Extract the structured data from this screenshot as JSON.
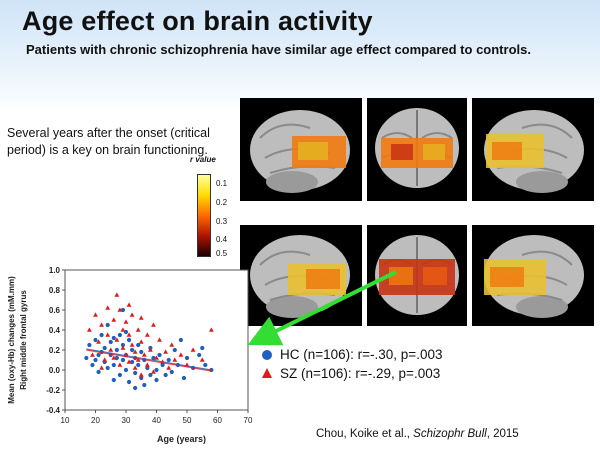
{
  "slide": {
    "title": "Age effect on brain activity",
    "subtitle": "Patients with chronic schizophrenia have similar age effect compared to controls.",
    "note": "Several years after the onset (critical period) is a key on brain functioning.",
    "citation_authors": "Chou, Koike et al., ",
    "citation_journal": "Schizophr Bull",
    "citation_year": ", 2015"
  },
  "colorbar": {
    "label": "r value",
    "ticks": [
      "0.1",
      "0.2",
      "0.3",
      "0.4",
      "0.5"
    ]
  },
  "legend": {
    "hc": "HC (n=106): r=-.30, p=.003",
    "sz": "SZ (n=106): r=-.29, p=.003"
  },
  "colors": {
    "hc": "#1f5fbf",
    "sz": "#e4191c",
    "arrow": "#33dd33"
  },
  "chart_data": {
    "type": "scatter",
    "xlabel": "Age (years)",
    "ylabel": "Mean (oxy-Hb) changes (mM.mm) Right middle frontal gyrus",
    "xlim": [
      10,
      70
    ],
    "ylim": [
      -0.4,
      1.0
    ],
    "xticks": [
      "10",
      "20",
      "30",
      "40",
      "50",
      "60",
      "70"
    ],
    "yticks": [
      "-0.4",
      "-0.2",
      "0.0",
      "0.2",
      "0.4",
      "0.6",
      "0.8",
      "1.0"
    ],
    "series": [
      {
        "name": "HC",
        "marker": "circle",
        "fit": [
          [
            17,
            0.21
          ],
          [
            58,
            0.0
          ]
        ],
        "points": [
          [
            17,
            0.12
          ],
          [
            18,
            0.25
          ],
          [
            19,
            0.05
          ],
          [
            20,
            0.3
          ],
          [
            20,
            0.1
          ],
          [
            21,
            -0.02
          ],
          [
            22,
            0.18
          ],
          [
            22,
            0.35
          ],
          [
            23,
            0.08
          ],
          [
            23,
            0.22
          ],
          [
            24,
            0.45
          ],
          [
            24,
            0.02
          ],
          [
            25,
            0.15
          ],
          [
            25,
            0.28
          ],
          [
            26,
            0.05
          ],
          [
            26,
            -0.1
          ],
          [
            27,
            0.2
          ],
          [
            27,
            0.12
          ],
          [
            28,
            0.35
          ],
          [
            28,
            -0.05
          ],
          [
            29,
            0.1
          ],
          [
            29,
            0.25
          ],
          [
            30,
            0.0
          ],
          [
            30,
            0.15
          ],
          [
            31,
            0.3
          ],
          [
            31,
            -0.12
          ],
          [
            32,
            0.08
          ],
          [
            32,
            0.2
          ],
          [
            33,
            -0.03
          ],
          [
            33,
            0.12
          ],
          [
            34,
            0.25
          ],
          [
            34,
            0.05
          ],
          [
            35,
            -0.08
          ],
          [
            35,
            0.18
          ],
          [
            36,
            0.1
          ],
          [
            36,
            -0.15
          ],
          [
            37,
            0.02
          ],
          [
            38,
            0.22
          ],
          [
            38,
            -0.05
          ],
          [
            39,
            0.12
          ],
          [
            40,
            0.0
          ],
          [
            40,
            -0.1
          ],
          [
            41,
            0.15
          ],
          [
            42,
            0.05
          ],
          [
            43,
            -0.05
          ],
          [
            44,
            0.1
          ],
          [
            45,
            -0.02
          ],
          [
            46,
            0.2
          ],
          [
            47,
            0.05
          ],
          [
            48,
            0.3
          ],
          [
            49,
            -0.08
          ],
          [
            50,
            0.12
          ],
          [
            52,
            0.02
          ],
          [
            54,
            0.15
          ],
          [
            55,
            0.22
          ],
          [
            56,
            0.05
          ],
          [
            58,
            0.0
          ],
          [
            21,
            0.15
          ],
          [
            30,
            0.38
          ],
          [
            26,
            0.32
          ],
          [
            33,
            -0.18
          ],
          [
            29,
            0.6
          ]
        ]
      },
      {
        "name": "SZ",
        "marker": "triangle",
        "fit": [
          [
            17,
            0.2
          ],
          [
            58,
            -0.01
          ]
        ],
        "points": [
          [
            18,
            0.4
          ],
          [
            19,
            0.15
          ],
          [
            20,
            0.55
          ],
          [
            21,
            0.28
          ],
          [
            22,
            0.45
          ],
          [
            23,
            0.1
          ],
          [
            24,
            0.35
          ],
          [
            25,
            0.2
          ],
          [
            26,
            0.5
          ],
          [
            26,
            0.12
          ],
          [
            27,
            0.75
          ],
          [
            27,
            0.3
          ],
          [
            28,
            0.6
          ],
          [
            28,
            0.05
          ],
          [
            29,
            0.4
          ],
          [
            29,
            0.22
          ],
          [
            30,
            0.15
          ],
          [
            30,
            0.48
          ],
          [
            31,
            0.08
          ],
          [
            31,
            0.35
          ],
          [
            32,
            0.25
          ],
          [
            32,
            0.55
          ],
          [
            33,
            0.18
          ],
          [
            33,
            0.02
          ],
          [
            34,
            0.4
          ],
          [
            34,
            0.1
          ],
          [
            35,
            0.28
          ],
          [
            35,
            -0.05
          ],
          [
            36,
            0.15
          ],
          [
            37,
            0.35
          ],
          [
            37,
            0.05
          ],
          [
            38,
            0.2
          ],
          [
            39,
            0.45
          ],
          [
            39,
            -0.02
          ],
          [
            40,
            0.12
          ],
          [
            41,
            0.3
          ],
          [
            42,
            0.08
          ],
          [
            43,
            0.18
          ],
          [
            44,
            0.02
          ],
          [
            45,
            0.25
          ],
          [
            46,
            0.1
          ],
          [
            48,
            0.15
          ],
          [
            50,
            0.05
          ],
          [
            52,
            0.2
          ],
          [
            55,
            0.1
          ],
          [
            58,
            0.4
          ],
          [
            24,
            0.62
          ],
          [
            31,
            0.65
          ],
          [
            22,
            0.02
          ],
          [
            35,
            0.52
          ]
        ]
      }
    ]
  }
}
